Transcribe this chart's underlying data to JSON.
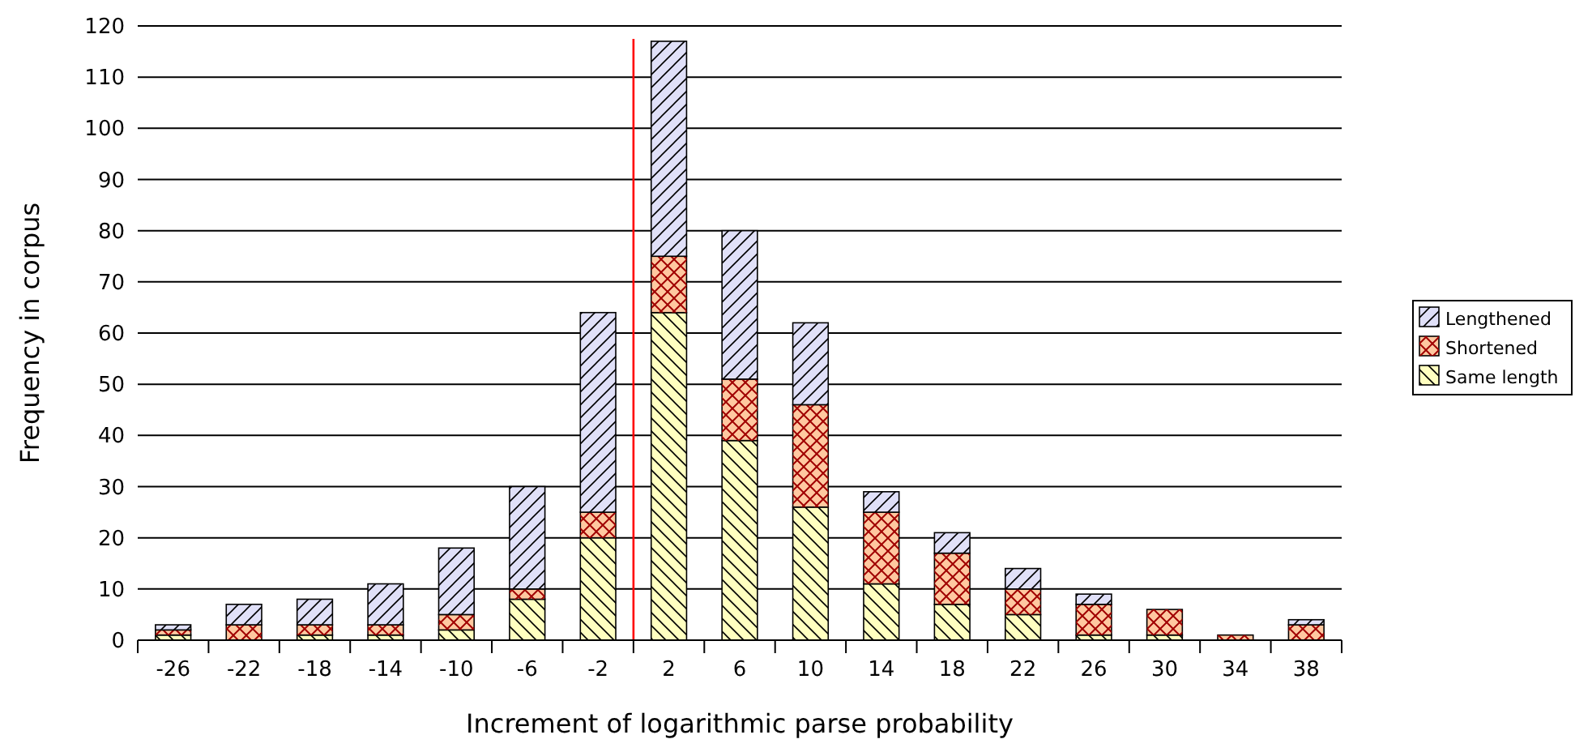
{
  "chart_data": {
    "type": "bar",
    "stacked": true,
    "xlabel": "Increment of logarithmic parse probability",
    "ylabel": "Frequency in corpus",
    "x": [
      -26,
      -22,
      -18,
      -14,
      -10,
      -6,
      -2,
      2,
      6,
      10,
      14,
      18,
      22,
      26,
      30,
      34,
      38
    ],
    "xlim": [
      -28,
      40
    ],
    "xticks": [
      -26,
      -22,
      -18,
      -14,
      -10,
      -6,
      -2,
      2,
      6,
      10,
      14,
      18,
      22,
      26,
      30,
      34,
      38
    ],
    "ylim": [
      0,
      120
    ],
    "yticks": [
      0,
      10,
      20,
      30,
      40,
      50,
      60,
      70,
      80,
      90,
      100,
      110,
      120
    ],
    "grid": "y",
    "legend": "right",
    "series": [
      {
        "name": "Same length",
        "color": "#ffffc0",
        "values": [
          1,
          0,
          1,
          1,
          2,
          8,
          20,
          64,
          39,
          26,
          11,
          7,
          5,
          1,
          1,
          0,
          0
        ]
      },
      {
        "name": "Shortened",
        "color": "#ffc8a0",
        "values": [
          1,
          3,
          2,
          2,
          3,
          2,
          5,
          11,
          12,
          20,
          14,
          10,
          5,
          6,
          5,
          1,
          3
        ]
      },
      {
        "name": "Lengthened",
        "color": "#e0e0f8",
        "values": [
          1,
          4,
          5,
          8,
          13,
          20,
          39,
          42,
          29,
          16,
          4,
          4,
          4,
          2,
          0,
          0,
          1
        ]
      }
    ],
    "ref_lines": [
      {
        "axis": "x",
        "value": 0,
        "color": "#ff0000"
      }
    ]
  }
}
